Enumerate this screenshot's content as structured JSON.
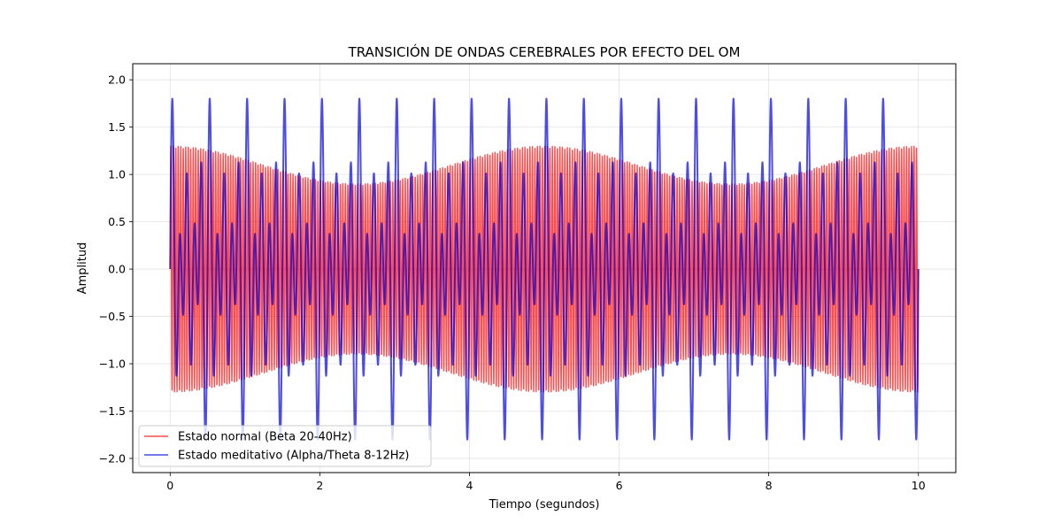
{
  "chart_data": {
    "type": "line",
    "title": "TRANSICIÓN DE ONDAS CEREBRALES POR EFECTO DEL OM",
    "xlabel": "Tiempo (segundos)",
    "ylabel": "Amplitud",
    "xlim": [
      -0.5,
      10.5
    ],
    "ylim": [
      -2.15,
      2.17
    ],
    "x_ticks": [
      0,
      2,
      4,
      6,
      8,
      10
    ],
    "x_tick_labels": [
      "0",
      "2",
      "4",
      "6",
      "8",
      "10"
    ],
    "y_ticks": [
      -2.0,
      -1.5,
      -1.0,
      -0.5,
      0.0,
      0.5,
      1.0,
      1.5,
      2.0
    ],
    "y_tick_labels": [
      "−2.0",
      "−1.5",
      "−1.0",
      "−0.5",
      "0.0",
      "0.5",
      "1.0",
      "1.5",
      "2.0"
    ],
    "grid": true,
    "legend_position": "lower-left",
    "series": [
      {
        "name": "Estado normal (Beta 20-40Hz)",
        "color": "#ff0000",
        "alpha": 0.7,
        "x_range": [
          0,
          10
        ],
        "base_frequency_hz": 30,
        "envelope": {
          "mean": 1.1,
          "amplitude": 0.2,
          "modulation_hz": 0.2
        }
      },
      {
        "name": "Estado meditativo (Alpha/Theta 8-12Hz)",
        "color": "#0000dd",
        "alpha": 0.7,
        "x_range": [
          0,
          10
        ],
        "components": [
          {
            "amplitude": 0.9,
            "frequency_hz": 10
          },
          {
            "amplitude": 0.6,
            "frequency_hz": 6
          },
          {
            "amplitude": 0.4,
            "frequency_hz": 8
          }
        ]
      }
    ]
  }
}
